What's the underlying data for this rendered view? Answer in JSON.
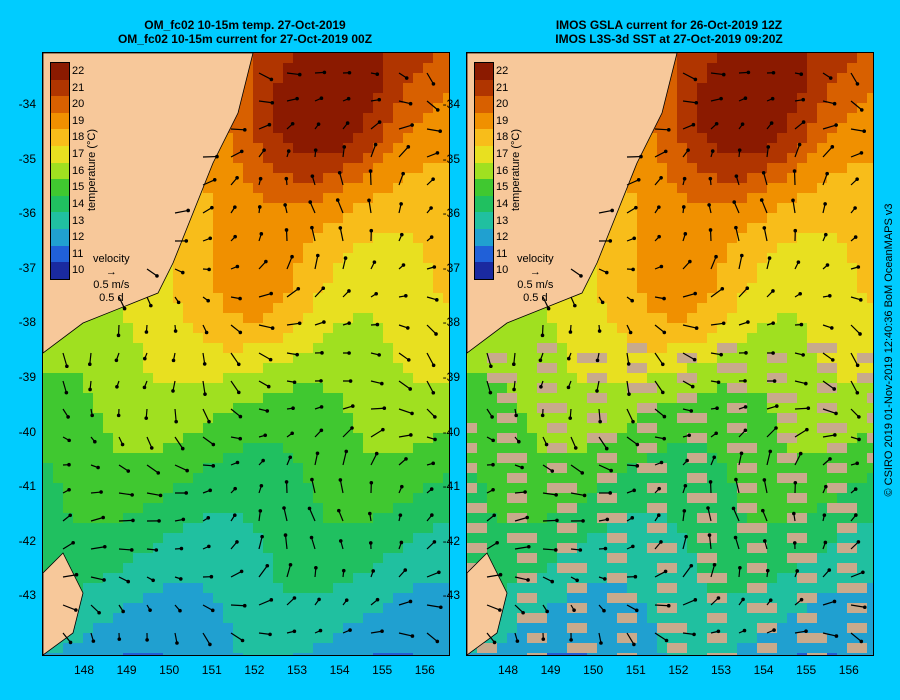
{
  "left_panel": {
    "title_line1": "OM_fc02 10-15m temp. 27-Oct-2019",
    "title_line2": "OM_fc02 10-15m current for 27-Oct-2019 00Z"
  },
  "right_panel": {
    "title_line1": "IMOS GSLA current for 26-Oct-2019 12Z",
    "title_line2": "IMOS L3S-3d SST at 27-Oct-2019 09:20Z"
  },
  "y_axis_labels": [
    "-34",
    "-35",
    "-36",
    "-37",
    "-38",
    "-39",
    "-40",
    "-41",
    "-42",
    "-43"
  ],
  "x_axis_labels": [
    "148",
    "149",
    "150",
    "151",
    "152",
    "153",
    "154",
    "155",
    "156"
  ],
  "colorbar": {
    "ticks": [
      "22",
      "21",
      "20",
      "19",
      "18",
      "17",
      "16",
      "15",
      "14",
      "13",
      "12",
      "11",
      "10"
    ],
    "label": "temperature (°C)",
    "colors": [
      "#8b1a00",
      "#b03500",
      "#d86000",
      "#f09000",
      "#f8bd1a",
      "#e8e020",
      "#a0e020",
      "#40c830",
      "#20c060",
      "#20c0a0",
      "#20a0d0",
      "#2060d8",
      "#1a2aa0"
    ]
  },
  "velocity_legend": {
    "title": "velocity",
    "speed": "0.5 m/s",
    "duration": "0.5 d"
  },
  "copyright": "© CSIRO 2019   01-Nov-2019 12:40:36 BoM OceanMAPS v3",
  "colors": {
    "background": "#00ccff",
    "land": "#f7c89a",
    "no_data": "#c8aa8c"
  }
}
